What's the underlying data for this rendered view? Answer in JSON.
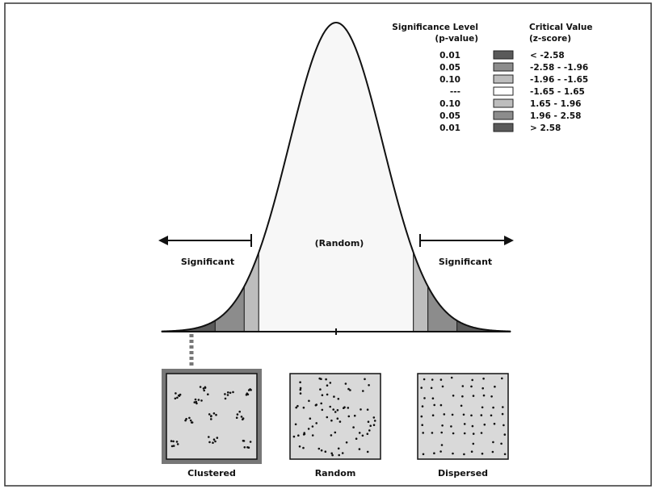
{
  "legend": {
    "header_left_line1": "Significance Level",
    "header_left_line2": "(p-value)",
    "header_right_line1": "Critical Value",
    "header_right_line2": "(z-score)",
    "rows": [
      {
        "p": "0.01",
        "z": "< -2.58",
        "color": "#5a5a5a"
      },
      {
        "p": "0.05",
        "z": "-2.58 - -1.96",
        "color": "#8c8c8c"
      },
      {
        "p": "0.10",
        "z": "-1.96 - -1.65",
        "color": "#bdbdbd"
      },
      {
        "p": "---",
        "z": "-1.65 - 1.65",
        "color": "#ffffff"
      },
      {
        "p": "0.10",
        "z": "1.65 - 1.96",
        "color": "#bdbdbd"
      },
      {
        "p": "0.05",
        "z": "1.96 - 2.58",
        "color": "#8c8c8c"
      },
      {
        "p": "0.01",
        "z": "> 2.58",
        "color": "#5a5a5a"
      }
    ]
  },
  "curve": {
    "center_label": "(Random)",
    "left_label": "Significant",
    "right_label": "Significant",
    "center_fill": "#f7f7f7",
    "thresholds": [
      1.65,
      1.96,
      2.58
    ]
  },
  "patterns": {
    "clustered": "Clustered",
    "random": "Random",
    "dispersed": "Dispersed",
    "box_fill": "#d9d9d9"
  }
}
